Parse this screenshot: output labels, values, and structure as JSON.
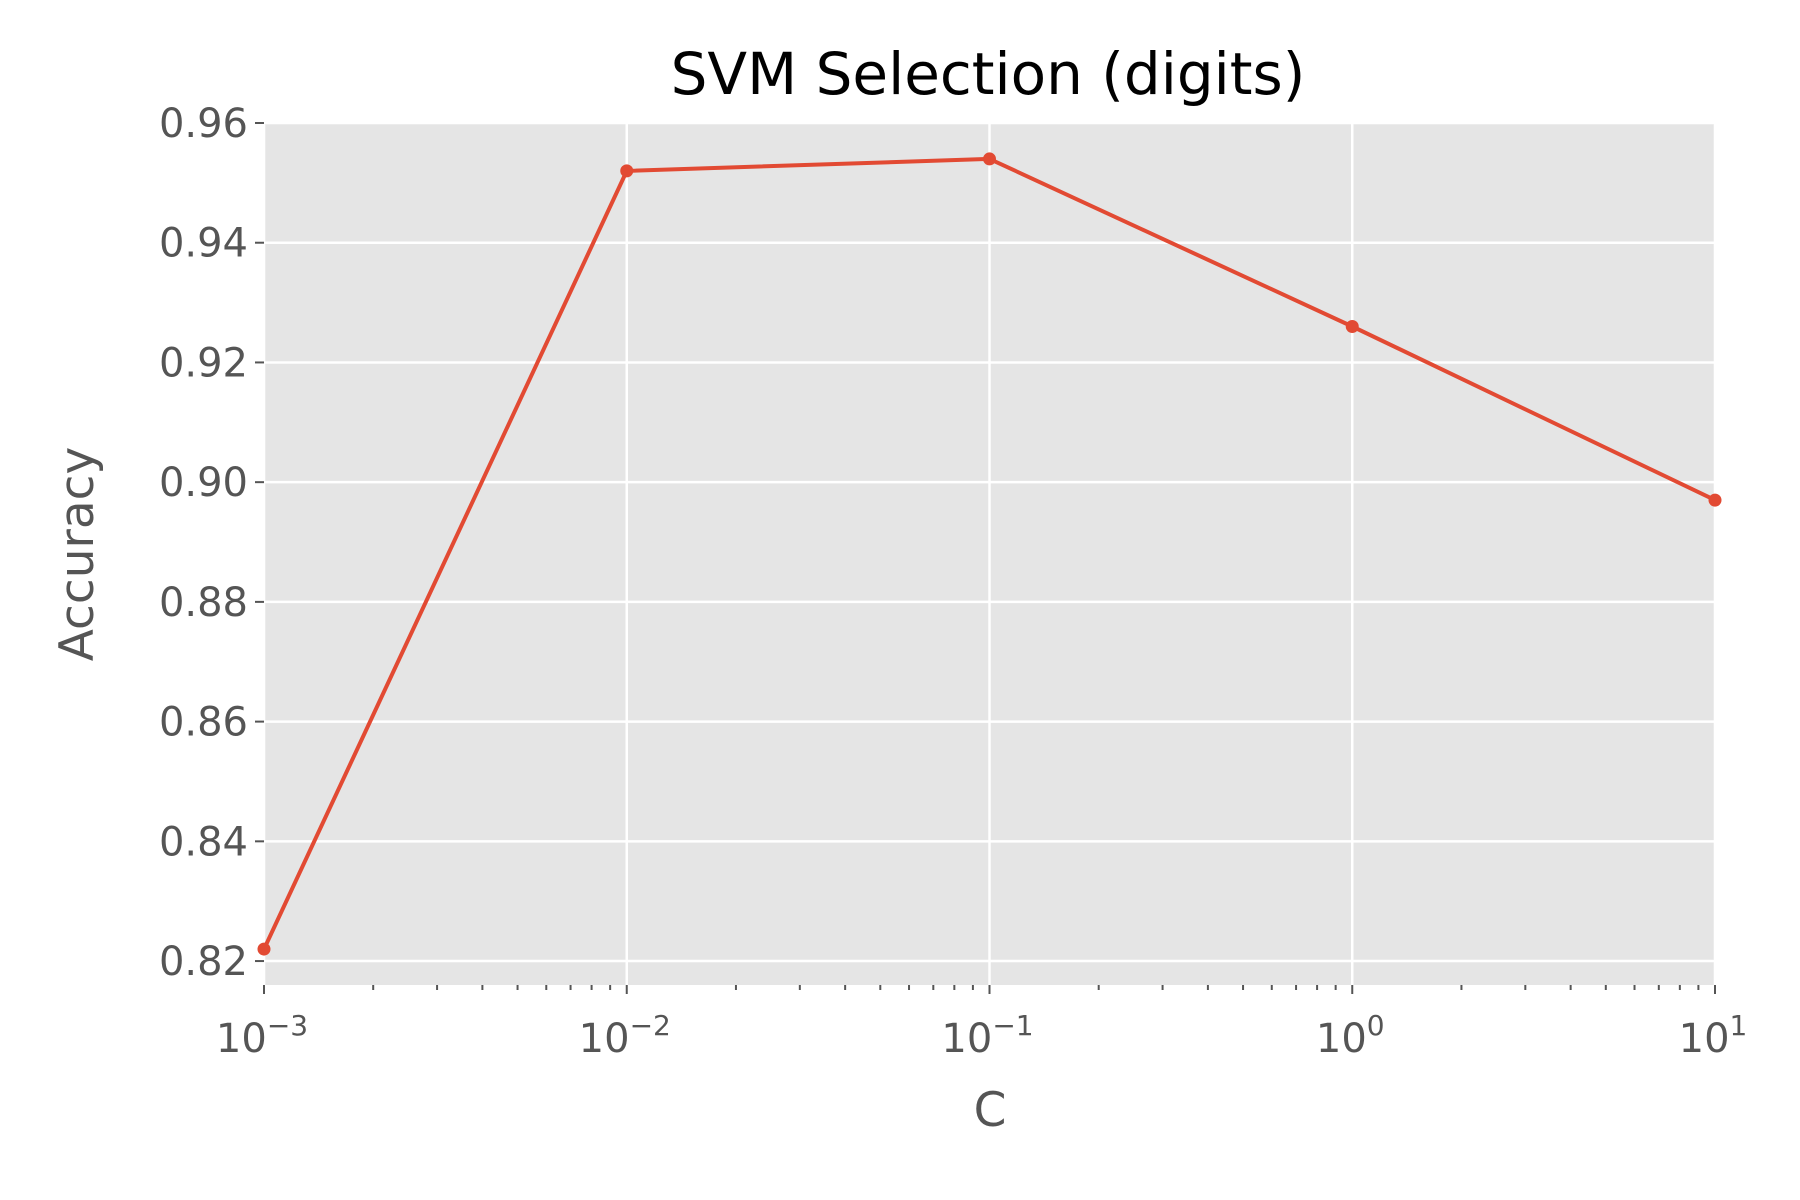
{
  "chart_data": {
    "type": "line",
    "title": "SVM Selection (digits)",
    "xlabel": "C",
    "ylabel": "Accuracy",
    "x_scale": "log",
    "xlim": [
      0.001,
      10
    ],
    "ylim": [
      0.816,
      0.96
    ],
    "x_ticks": [
      {
        "value": 0.001,
        "base": "10",
        "exp": "−3"
      },
      {
        "value": 0.01,
        "base": "10",
        "exp": "−2"
      },
      {
        "value": 0.1,
        "base": "10",
        "exp": "−1"
      },
      {
        "value": 1,
        "base": "10",
        "exp": "0"
      },
      {
        "value": 10,
        "base": "10",
        "exp": "1"
      }
    ],
    "y_ticks": [
      "0.82",
      "0.84",
      "0.86",
      "0.88",
      "0.90",
      "0.92",
      "0.94",
      "0.96"
    ],
    "grid": true,
    "colors": {
      "plot_background": "#e5e5e5",
      "line": "#e24a33",
      "grid": "#ffffff"
    },
    "series": [
      {
        "x": [
          0.001,
          0.01,
          0.1,
          1,
          10
        ],
        "values": [
          0.822,
          0.952,
          0.954,
          0.926,
          0.897
        ]
      }
    ]
  }
}
